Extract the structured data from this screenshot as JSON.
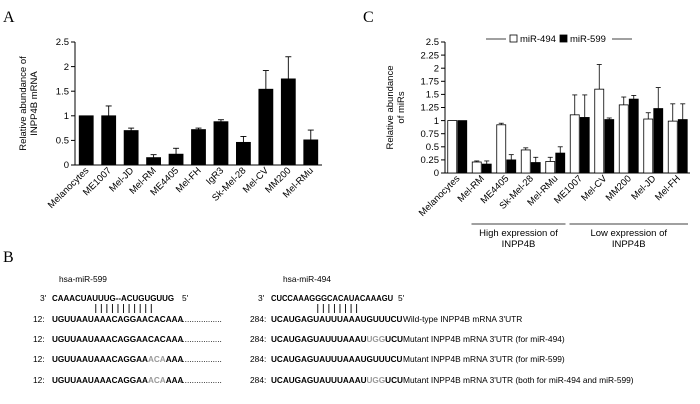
{
  "panels": {
    "a": "A",
    "b": "B",
    "c": "C"
  },
  "chart_data": [
    {
      "type": "bar",
      "panel": "A",
      "title": "",
      "ylabel": [
        "Relative abundance of",
        "INPP4B mRNA"
      ],
      "ylim": [
        0,
        2.5
      ],
      "yticks": [
        "0",
        "0.5",
        "1",
        "1.5",
        "2",
        "2.5"
      ],
      "categories": [
        "Melanocytes",
        "ME1007",
        "Mel-JD",
        "Mel-RM",
        "ME4405",
        "Mel-FH",
        "IgR3",
        "Sk-Mel-28",
        "Mel-CV",
        "MM200",
        "Mel-RMu"
      ],
      "values": [
        1.0,
        1.0,
        0.7,
        0.15,
        0.22,
        0.72,
        0.88,
        0.46,
        1.54,
        1.75,
        0.51
      ],
      "errors": [
        0.0,
        0.2,
        0.05,
        0.06,
        0.12,
        0.03,
        0.04,
        0.12,
        0.38,
        0.45,
        0.2
      ],
      "color": "#000000"
    },
    {
      "type": "bar",
      "panel": "C",
      "title": "",
      "ylabel": [
        "Relative abundance",
        "of miRs"
      ],
      "ylim": [
        0,
        2.5
      ],
      "yticks": [
        "0",
        "0.25",
        "0.5",
        "0.75",
        "1",
        "1.25",
        "1.5",
        "1.75",
        "2",
        "2.25",
        "2.5"
      ],
      "legend_position": "top-center",
      "categories": [
        "Melanocytes",
        "Mel-RM",
        "ME4405",
        "Sk-Mel-28",
        "Mel-RMu",
        "ME1007",
        "Mel-CV",
        "MM200",
        "Mel-JD",
        "Mel-FH"
      ],
      "series": [
        {
          "name": "miR-494",
          "color": "#ffffff",
          "values": [
            1.0,
            0.21,
            0.92,
            0.44,
            0.22,
            1.11,
            1.6,
            1.3,
            1.03,
            0.99
          ],
          "errors": [
            0.0,
            0.02,
            0.03,
            0.04,
            0.08,
            0.38,
            0.47,
            0.15,
            0.12,
            0.33
          ]
        },
        {
          "name": "miR-599",
          "color": "#000000",
          "values": [
            1.0,
            0.17,
            0.25,
            0.2,
            0.38,
            1.06,
            1.02,
            1.41,
            1.23,
            1.02
          ],
          "errors": [
            0.0,
            0.06,
            0.1,
            0.1,
            0.12,
            0.43,
            0.03,
            0.07,
            0.4,
            0.3
          ]
        }
      ],
      "groups": [
        {
          "label": [
            "High expression of",
            "INPP4B"
          ],
          "from": 1,
          "to": 4
        },
        {
          "label": [
            "Low expression of",
            "INPP4B"
          ],
          "from": 5,
          "to": 9
        }
      ]
    }
  ],
  "panel_b": {
    "mirna_labels": {
      "left": "hsa-miR-599",
      "right": "hsa-miR-494"
    },
    "mirna_seqs": {
      "left": {
        "p3": "3'",
        "seq": "CAAACUAUUUG--ACUGUGUUG",
        "p5": "5'"
      },
      "right": {
        "p3": "3'",
        "seq": "CUCCAAAGGGCACAUACAAAGU",
        "p5": "5'"
      }
    },
    "rows": [
      {
        "lpos": "12:",
        "lseq": [
          {
            "t": "UGUUAAUAAACAGGAACACAAA",
            "m": false
          }
        ],
        "dots": "..................",
        "rpos": "284:",
        "rseq": [
          {
            "t": "UCAUGAGUAUUUAAAUGUUUCU",
            "m": false
          }
        ],
        "desc": "Wild-type INPP4B mRNA 3'UTR"
      },
      {
        "lpos": "12:",
        "lseq": [
          {
            "t": "UGUUAAUAAACAGGAACACAAA",
            "m": false
          }
        ],
        "dots": "..................",
        "rpos": "284:",
        "rseq": [
          {
            "t": "UCAUGAGUAUUUAAAU",
            "m": false
          },
          {
            "t": "UGG",
            "m": true
          },
          {
            "t": "UCU",
            "m": false
          }
        ],
        "desc": "Mutant INPP4B mRNA 3'UTR (for miR-494)"
      },
      {
        "lpos": "12:",
        "lseq": [
          {
            "t": "UGUUAAUAAACAGGAA",
            "m": false
          },
          {
            "t": "ACA",
            "m": true
          },
          {
            "t": "AAA",
            "m": false
          }
        ],
        "dots": "..................",
        "rpos": "284:",
        "rseq": [
          {
            "t": "UCAUGAGUAUUUAAAUGUUUCU",
            "m": false
          }
        ],
        "desc": "Mutant INPP4B mRNA 3'UTR (for miR-599)"
      },
      {
        "lpos": "12:",
        "lseq": [
          {
            "t": "UGUUAAUAAACAGGAA",
            "m": false
          },
          {
            "t": "ACA",
            "m": true
          },
          {
            "t": "AAA",
            "m": false
          }
        ],
        "dots": "..................",
        "rpos": "284:",
        "rseq": [
          {
            "t": "UCAUGAGUAUUUAAAU",
            "m": false
          },
          {
            "t": "UGG",
            "m": true
          },
          {
            "t": "UCU",
            "m": false
          }
        ],
        "desc": "Mutant INPP4B mRNA 3'UTR (both for miR-494 and miR-599)"
      }
    ]
  }
}
